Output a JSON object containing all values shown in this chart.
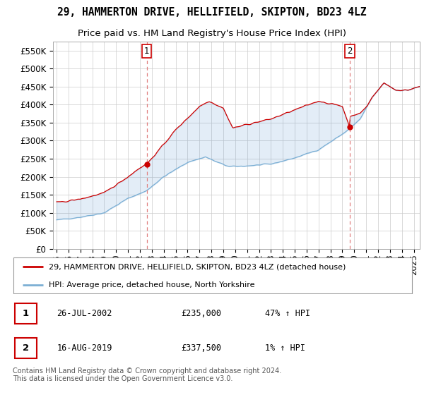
{
  "title": "29, HAMMERTON DRIVE, HELLIFIELD, SKIPTON, BD23 4LZ",
  "subtitle": "Price paid vs. HM Land Registry's House Price Index (HPI)",
  "ylim": [
    0,
    575000
  ],
  "yticks": [
    0,
    50000,
    100000,
    150000,
    200000,
    250000,
    300000,
    350000,
    400000,
    450000,
    500000,
    550000
  ],
  "xlim_start": 1994.7,
  "xlim_end": 2025.5,
  "grid_color": "#cccccc",
  "sale1_date": 2002.57,
  "sale1_price": 235000,
  "sale2_date": 2019.62,
  "sale2_price": 337500,
  "hpi_line_color": "#7bafd4",
  "price_line_color": "#cc0000",
  "vline_color": "#e08080",
  "fill_color": "#ddeeff",
  "legend_items": [
    "29, HAMMERTON DRIVE, HELLIFIELD, SKIPTON, BD23 4LZ (detached house)",
    "HPI: Average price, detached house, North Yorkshire"
  ],
  "table_rows": [
    {
      "label": "1",
      "date": "26-JUL-2002",
      "price": "£235,000",
      "hpi": "47% ↑ HPI"
    },
    {
      "label": "2",
      "date": "16-AUG-2019",
      "price": "£337,500",
      "hpi": "1% ↑ HPI"
    }
  ],
  "footer": "Contains HM Land Registry data © Crown copyright and database right 2024.\nThis data is licensed under the Open Government Licence v3.0.",
  "title_fontsize": 10.5,
  "subtitle_fontsize": 9.5,
  "tick_fontsize": 8.5
}
